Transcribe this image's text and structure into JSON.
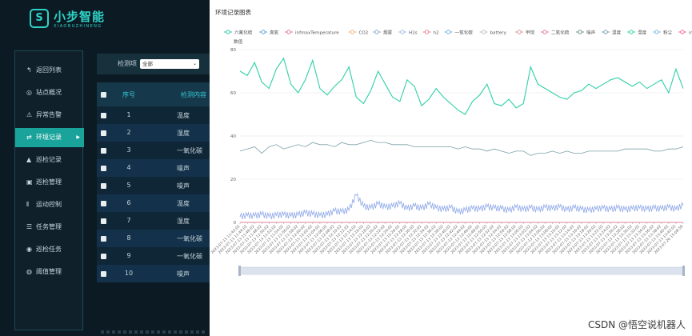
{
  "app": {
    "brand_name": "小步智能",
    "brand_sub": "XIAOBUZHINENG",
    "brand_mark": "S"
  },
  "sidebar": {
    "items": [
      {
        "label": "返回列表",
        "icon": "↰"
      },
      {
        "label": "站点概况",
        "icon": "◎"
      },
      {
        "label": "异常告警",
        "icon": "⚠"
      },
      {
        "label": "环境记录",
        "icon": "⇄",
        "active": true,
        "arrow": "▶"
      },
      {
        "label": "巡检记录",
        "icon": "▲"
      },
      {
        "label": "巡检管理",
        "icon": "▣"
      },
      {
        "label": "运动控制",
        "icon": "⫴"
      },
      {
        "label": "任务管理",
        "icon": "☰"
      },
      {
        "label": "巡检任务",
        "icon": "◉"
      },
      {
        "label": "阈值管理",
        "icon": "◍"
      }
    ]
  },
  "filter": {
    "label": "检测项",
    "selected": "全部",
    "chevron": "⌄"
  },
  "table": {
    "headers": {
      "index": "序号",
      "content": "检测内容"
    },
    "rows": [
      {
        "index": "1",
        "type": "温度"
      },
      {
        "index": "2",
        "type": "湿度"
      },
      {
        "index": "3",
        "type": "一氧化碳"
      },
      {
        "index": "4",
        "type": "噪声"
      },
      {
        "index": "5",
        "type": "噪声"
      },
      {
        "index": "6",
        "type": "温度"
      },
      {
        "index": "7",
        "type": "湿度"
      },
      {
        "index": "8",
        "type": "一氧化碳"
      },
      {
        "index": "9",
        "type": "一氧化碳"
      },
      {
        "index": "10",
        "type": "噪声"
      }
    ]
  },
  "modal": {
    "title": "环境记录图表"
  },
  "watermark": "CSDN @悟空说机器人",
  "chart_data": {
    "type": "line",
    "title": "环境记录图表",
    "ylabel": "数值",
    "ylim": [
      0,
      80
    ],
    "yticks": [
      0,
      20,
      40,
      60,
      80
    ],
    "grid": true,
    "legend_position": "top",
    "legend": [
      {
        "name": "六氟化硫",
        "color": "#2fc9a6"
      },
      {
        "name": "臭氧",
        "color": "#5aa0d8"
      },
      {
        "name": "infmaxTemperature",
        "color": "#e8748a"
      },
      {
        "name": "CO2",
        "color": "#f0b27a"
      },
      {
        "name": "烟雾",
        "color": "#8fa4c8"
      },
      {
        "name": "H2s",
        "color": "#a6b8e8"
      },
      {
        "name": "h2",
        "color": "#f08090"
      },
      {
        "name": "一氧化碳",
        "color": "#7ab0d8"
      },
      {
        "name": "battery",
        "color": "#bfbfbf"
      },
      {
        "name": "甲烷",
        "color": "#e0909a"
      },
      {
        "name": "二氧化硫",
        "color": "#e87a8a"
      },
      {
        "name": "噪声",
        "color": "#6f8f8f"
      },
      {
        "name": "温度",
        "color": "#7aa0a8"
      },
      {
        "name": "湿度",
        "color": "#2fd0a8"
      },
      {
        "name": "粉尘",
        "color": "#7ab8d8"
      },
      {
        "name": "infminTemperature",
        "color": "#f06a8a"
      }
    ],
    "x_labels": [
      "2023-07-13 11:42:02",
      "2023-07-13 11:44:02",
      "2023-07-13 11:46:02",
      "2023-07-13 11:48:02",
      "2023-07-13 11:50:02",
      "2023-07-13 11:52:02",
      "2023-07-13 11:54:02",
      "2023-07-13 11:56:02",
      "2023-07-13 11:58:02",
      "2023-07-13 12:00:02",
      "2023-07-13 12:02:02",
      "2023-07-13 12:04:02",
      "2023-07-13 12:06:02",
      "2023-07-13 12:08:02",
      "2023-07-13 12:10:02",
      "2023-07-13 12:12:02",
      "2023-07-13 12:14:02",
      "2023-07-13 12:16:02",
      "2023-07-13 12:18:02",
      "2023-07-13 12:20:02",
      "2023-07-13 12:22:02",
      "2023-07-13 12:24:02",
      "2023-07-13 12:26:02",
      "2023-07-13 12:28:02",
      "2023-07-13 12:30:02",
      "2023-07-13 12:32:02",
      "2023-07-13 12:34:02",
      "2023-07-13 12:36:02",
      "2023-07-13 12:38:02",
      "2023-07-13 12:40:02",
      "2023-07-13 12:42:02",
      "2023-07-13 12:44:02",
      "2023-07-13 12:46:02",
      "2023-07-13 12:48:02",
      "2023-07-13 12:50:02",
      "2023-07-13 12:52:02",
      "2023-07-13 12:54:02",
      "2023-07-13 12:56:02",
      "2023-07-13 12:58:02",
      "2023-07-13 13:00:02",
      "2023-07-13 13:02:02",
      "2023-07-13 13:04:02",
      "2023-07-13 13:06:02",
      "2023-07-13 13:08:02",
      "2023-07-13 13:10:02",
      "2023-07-13 13:12:02",
      "2023-07-13 13:14:02",
      "2023-07-13 13:16:02",
      "2023-07-13 13:18:02",
      "2023-07-13 13:20:02",
      "2023-07-13 13:22:02",
      "2023-07-13 13:24:02",
      "2023-07-13 13:26:02",
      "2023-07-13 13:28:02",
      "2023-07-13 13:30:02",
      "2023-07-13 13:32:02",
      "2023-07-13 13:34:02",
      "2023-07-13 13:36:02",
      "2023-07-13 13:38:02",
      "2023-07-13 13:40:02",
      "2023-07-13 13:42:02",
      "2023-07-20 15:08:59"
    ],
    "series": [
      {
        "name": "湿度",
        "color": "#2fd0a8",
        "values": [
          70,
          68,
          74,
          65,
          62,
          71,
          76,
          64,
          60,
          66,
          75,
          62,
          59,
          63,
          66,
          72,
          58,
          55,
          61,
          70,
          64,
          58,
          56,
          66,
          63,
          54,
          57,
          62,
          58,
          55,
          52,
          50,
          56,
          59,
          64,
          55,
          54,
          57,
          53,
          55,
          72,
          64,
          62,
          60,
          58,
          57,
          60,
          61,
          64,
          62,
          64,
          66,
          67,
          65,
          63,
          65,
          62,
          64,
          66,
          60,
          71,
          62
        ]
      },
      {
        "name": "温度",
        "color": "#7aa0a8",
        "values": [
          33,
          34,
          35,
          32,
          35,
          36,
          34,
          35,
          36,
          35,
          37,
          36,
          36,
          35,
          37,
          36,
          36,
          37,
          38,
          37,
          37,
          36,
          36,
          36,
          35,
          35,
          35,
          35,
          35,
          35,
          34,
          35,
          34,
          34,
          33,
          34,
          33,
          32,
          33,
          33,
          31,
          32,
          32,
          33,
          32,
          33,
          32,
          32,
          33,
          33,
          33,
          33,
          33,
          34,
          34,
          34,
          34,
          33,
          33,
          34,
          34,
          35
        ]
      },
      {
        "name": "噪声",
        "color": "#8fa8e8",
        "values": [
          2.5,
          3,
          2.8,
          3.5,
          2.6,
          3.1,
          3.4,
          2.9,
          3.3,
          4.2,
          3.6,
          3.0,
          3.4,
          5.1,
          4.7,
          5.6,
          12.5,
          7.2,
          6.5,
          8.4,
          6.8,
          7.3,
          8.6,
          6.1,
          7.4,
          6.2,
          8.2,
          6.5,
          5.8,
          6.7,
          4.6,
          5.4,
          6.3,
          5.9,
          7.1,
          6.4,
          6.2,
          5.3,
          6.9,
          5.7,
          6.6,
          5.5,
          6.8,
          6.2,
          7.0,
          5.6,
          6.6,
          5.8,
          5.4,
          6.0,
          6.4,
          5.8,
          6.5,
          5.7,
          6.2,
          6.5,
          5.9,
          6.4,
          6.1,
          6.8,
          5.9,
          7.9
        ]
      },
      {
        "name": "infminTemperature",
        "color": "#f06a8a",
        "values": [
          0,
          0,
          0,
          0,
          0,
          0,
          0,
          0,
          0,
          0,
          0,
          0,
          0,
          0,
          0,
          0,
          0,
          0,
          0,
          0,
          0,
          0,
          0,
          0,
          0,
          0,
          0,
          0,
          0,
          0,
          0,
          0,
          0,
          0,
          0,
          0,
          0,
          0,
          0,
          0,
          0,
          0,
          0,
          0,
          0,
          0,
          0,
          0,
          0,
          0,
          0,
          0,
          0,
          0,
          0,
          0,
          0,
          0,
          0,
          0,
          0,
          0
        ]
      }
    ]
  }
}
